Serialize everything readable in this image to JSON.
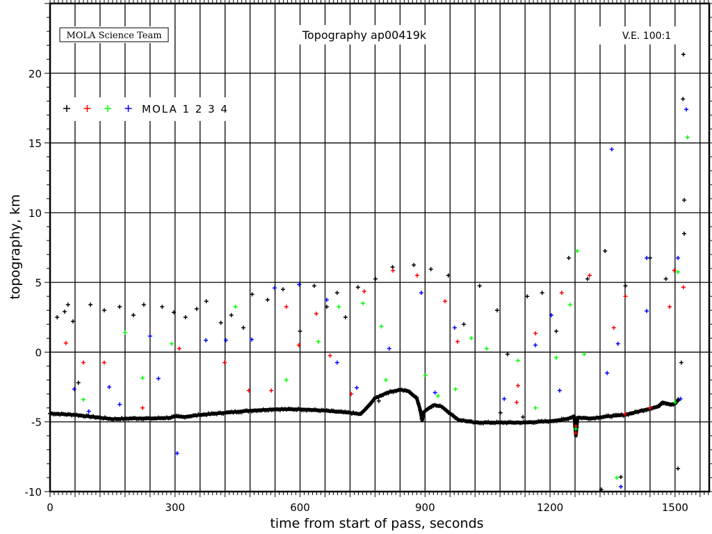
{
  "chart_data": {
    "type": "scatter",
    "title": "Topography ap00419k",
    "credit": "MOLA Science Team",
    "vertical_exaggeration": "V.E. 100:1",
    "xlabel": "time from start of pass, seconds",
    "ylabel": "topography, km",
    "xlim": [
      0,
      1582
    ],
    "ylim": [
      -10,
      25
    ],
    "x_ticks": [
      0,
      300,
      600,
      900,
      1200,
      1500
    ],
    "y_ticks": [
      -10,
      -5,
      0,
      5,
      10,
      15,
      20
    ],
    "grid": {
      "x_every": 60,
      "y_every": 5,
      "shown": true
    },
    "legend": {
      "position": "top-left",
      "label": "MOLA 1 2 3 4",
      "colors": [
        "#000000",
        "#ff0000",
        "#00ff00",
        "#0000ff"
      ]
    },
    "profile": {
      "color": "#000000",
      "points": [
        [
          0,
          -4.4
        ],
        [
          60,
          -4.5
        ],
        [
          120,
          -4.7
        ],
        [
          150,
          -4.8
        ],
        [
          200,
          -4.75
        ],
        [
          250,
          -4.75
        ],
        [
          290,
          -4.7
        ],
        [
          300,
          -4.6
        ],
        [
          320,
          -4.65
        ],
        [
          360,
          -4.5
        ],
        [
          420,
          -4.35
        ],
        [
          480,
          -4.2
        ],
        [
          540,
          -4.1
        ],
        [
          600,
          -4.1
        ],
        [
          660,
          -4.2
        ],
        [
          720,
          -4.35
        ],
        [
          745,
          -4.45
        ],
        [
          760,
          -4.0
        ],
        [
          780,
          -3.3
        ],
        [
          810,
          -2.9
        ],
        [
          840,
          -2.7
        ],
        [
          860,
          -2.8
        ],
        [
          880,
          -3.3
        ],
        [
          888,
          -4.1
        ],
        [
          893,
          -4.9
        ],
        [
          897,
          -4.3
        ],
        [
          905,
          -4.1
        ],
        [
          920,
          -3.8
        ],
        [
          940,
          -3.9
        ],
        [
          960,
          -4.4
        ],
        [
          980,
          -4.85
        ],
        [
          1020,
          -5.05
        ],
        [
          1080,
          -5.05
        ],
        [
          1140,
          -5.05
        ],
        [
          1200,
          -4.95
        ],
        [
          1240,
          -4.8
        ],
        [
          1258,
          -4.6
        ],
        [
          1262,
          -6.0
        ],
        [
          1266,
          -4.7
        ],
        [
          1300,
          -4.75
        ],
        [
          1340,
          -4.6
        ],
        [
          1380,
          -4.5
        ],
        [
          1420,
          -4.2
        ],
        [
          1440,
          -4.05
        ],
        [
          1460,
          -3.9
        ],
        [
          1470,
          -3.6
        ],
        [
          1490,
          -3.75
        ],
        [
          1500,
          -3.7
        ],
        [
          1510,
          -3.35
        ]
      ]
    },
    "series": [
      {
        "color": "#000000",
        "points": [
          [
            17,
            2.5
          ],
          [
            35,
            2.9
          ],
          [
            55,
            2.2
          ],
          [
            43,
            3.4
          ],
          [
            97,
            3.4
          ],
          [
            68,
            -2.2
          ],
          [
            130,
            3
          ],
          [
            167,
            3.25
          ],
          [
            200,
            2.65
          ],
          [
            225,
            3.4
          ],
          [
            269,
            3.25
          ],
          [
            297,
            2.85
          ],
          [
            325,
            2.5
          ],
          [
            352,
            3.1
          ],
          [
            375,
            3.65
          ],
          [
            410,
            2.1
          ],
          [
            435,
            2.65
          ],
          [
            464,
            1.75
          ],
          [
            485,
            4.15
          ],
          [
            522,
            3.75
          ],
          [
            559,
            4.5
          ],
          [
            600,
            1.5
          ],
          [
            634,
            4.75
          ],
          [
            664,
            3.25
          ],
          [
            689,
            4.25
          ],
          [
            709,
            2.5
          ],
          [
            739,
            4.65
          ],
          [
            781,
            5.25
          ],
          [
            822,
            6.1
          ],
          [
            873,
            6.25
          ],
          [
            914,
            5.95
          ],
          [
            956,
            5.5
          ],
          [
            993,
            2
          ],
          [
            1031,
            4.75
          ],
          [
            1073,
            3
          ],
          [
            1098,
            -0.15
          ],
          [
            1145,
            4
          ],
          [
            1181,
            4.25
          ],
          [
            1215,
            1.5
          ],
          [
            1245,
            6.75
          ],
          [
            1290,
            5.25
          ],
          [
            1332,
            7.25
          ],
          [
            1381,
            4.75
          ],
          [
            1440,
            6.75
          ],
          [
            1478,
            5.25
          ],
          [
            1515,
            -0.75
          ],
          [
            1520,
            21.35
          ],
          [
            1519,
            18.15
          ],
          [
            1522,
            10.9
          ],
          [
            1522,
            8.5
          ],
          [
            1507,
            -8.35
          ],
          [
            1370,
            -8.95
          ],
          [
            1323,
            -9.85
          ],
          [
            789,
            -3.5
          ],
          [
            1081,
            -4.35
          ],
          [
            1135,
            -4.65
          ]
        ]
      },
      {
        "color": "#ff0000",
        "points": [
          [
            38,
            0.65
          ],
          [
            80,
            -0.75
          ],
          [
            130,
            -0.75
          ],
          [
            222,
            -4
          ],
          [
            310,
            0.25
          ],
          [
            419,
            -0.75
          ],
          [
            477,
            -2.75
          ],
          [
            531,
            -2.75
          ],
          [
            567,
            3.25
          ],
          [
            597,
            0.5
          ],
          [
            639,
            2.75
          ],
          [
            672,
            -0.25
          ],
          [
            723,
            -3
          ],
          [
            754,
            4.35
          ],
          [
            823,
            5.85
          ],
          [
            881,
            5.5
          ],
          [
            948,
            3.65
          ],
          [
            978,
            0.75
          ],
          [
            1120,
            -3.6
          ],
          [
            1123,
            -2.4
          ],
          [
            1165,
            1.35
          ],
          [
            1228,
            4.25
          ],
          [
            1295,
            5.5
          ],
          [
            1353,
            1.75
          ],
          [
            1381,
            4
          ],
          [
            1487,
            3.25
          ],
          [
            1520,
            4.65
          ],
          [
            1498,
            5.85
          ],
          [
            1262,
            -5.8
          ],
          [
            1262,
            -5.3
          ],
          [
            1440,
            -4.0
          ],
          [
            1380,
            -4.45
          ]
        ]
      },
      {
        "color": "#00ff00",
        "points": [
          [
            80,
            -3.4
          ],
          [
            180,
            1.4
          ],
          [
            222,
            -1.85
          ],
          [
            292,
            0.6
          ],
          [
            445,
            3.25
          ],
          [
            567,
            -2
          ],
          [
            644,
            0.75
          ],
          [
            693,
            3.25
          ],
          [
            751,
            3.5
          ],
          [
            795,
            1.85
          ],
          [
            806,
            -2
          ],
          [
            901,
            -1.65
          ],
          [
            931,
            -3.15
          ],
          [
            973,
            -2.65
          ],
          [
            1011,
            1
          ],
          [
            1048,
            0.25
          ],
          [
            1123,
            -0.6
          ],
          [
            1165,
            -4
          ],
          [
            1215,
            -0.4
          ],
          [
            1248,
            3.4
          ],
          [
            1265,
            7.25
          ],
          [
            1282,
            -0.15
          ],
          [
            1360,
            -9
          ],
          [
            1507,
            5.75
          ],
          [
            1530,
            15.4
          ],
          [
            1262,
            -5.5
          ],
          [
            1500,
            -3.6
          ]
        ]
      },
      {
        "color": "#0000ff",
        "points": [
          [
            58,
            -2.65
          ],
          [
            93,
            -4.25
          ],
          [
            142,
            -2.5
          ],
          [
            167,
            -3.75
          ],
          [
            240,
            1.15
          ],
          [
            260,
            -1.9
          ],
          [
            305,
            -7.25
          ],
          [
            374,
            0.85
          ],
          [
            422,
            0.85
          ],
          [
            484,
            0.9
          ],
          [
            539,
            4.6
          ],
          [
            598,
            4.85
          ],
          [
            664,
            3.75
          ],
          [
            689,
            -0.75
          ],
          [
            736,
            -2.55
          ],
          [
            814,
            0.25
          ],
          [
            891,
            4.25
          ],
          [
            924,
            -2.9
          ],
          [
            971,
            1.75
          ],
          [
            1090,
            -3.35
          ],
          [
            1165,
            0.5
          ],
          [
            1203,
            2.65
          ],
          [
            1223,
            -2.75
          ],
          [
            1348,
            14.55
          ],
          [
            1363,
            0.6
          ],
          [
            1432,
            2.95
          ],
          [
            1432,
            6.75
          ],
          [
            1507,
            6.75
          ],
          [
            1527,
            17.4
          ],
          [
            1370,
            -9.65
          ],
          [
            1337,
            -1.5
          ],
          [
            1513,
            -3.35
          ]
        ]
      }
    ]
  }
}
